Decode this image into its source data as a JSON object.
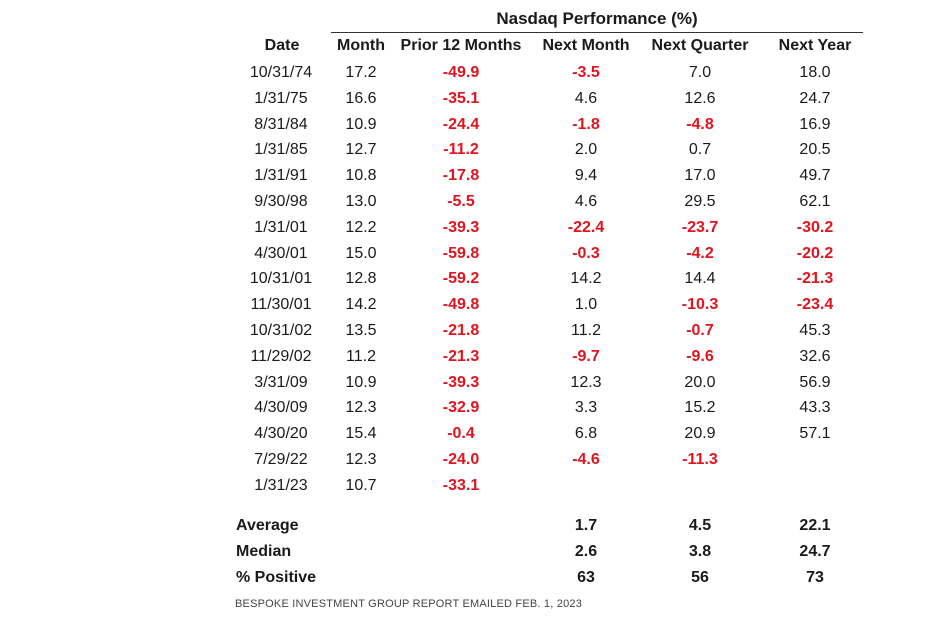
{
  "table": {
    "group_header": "Nasdaq Performance (%)",
    "columns": [
      "Date",
      "Month",
      "Prior 12 Months",
      "Next Month",
      "Next Quarter",
      "Next Year"
    ],
    "rows": [
      [
        "10/31/74",
        "17.2",
        "-49.9",
        "-3.5",
        "7.0",
        "18.0"
      ],
      [
        "1/31/75",
        "16.6",
        "-35.1",
        "4.6",
        "12.6",
        "24.7"
      ],
      [
        "8/31/84",
        "10.9",
        "-24.4",
        "-1.8",
        "-4.8",
        "16.9"
      ],
      [
        "1/31/85",
        "12.7",
        "-11.2",
        "2.0",
        "0.7",
        "20.5"
      ],
      [
        "1/31/91",
        "10.8",
        "-17.8",
        "9.4",
        "17.0",
        "49.7"
      ],
      [
        "9/30/98",
        "13.0",
        "-5.5",
        "4.6",
        "29.5",
        "62.1"
      ],
      [
        "1/31/01",
        "12.2",
        "-39.3",
        "-22.4",
        "-23.7",
        "-30.2"
      ],
      [
        "4/30/01",
        "15.0",
        "-59.8",
        "-0.3",
        "-4.2",
        "-20.2"
      ],
      [
        "10/31/01",
        "12.8",
        "-59.2",
        "14.2",
        "14.4",
        "-21.3"
      ],
      [
        "11/30/01",
        "14.2",
        "-49.8",
        "1.0",
        "-10.3",
        "-23.4"
      ],
      [
        "10/31/02",
        "13.5",
        "-21.8",
        "11.2",
        "-0.7",
        "45.3"
      ],
      [
        "11/29/02",
        "11.2",
        "-21.3",
        "-9.7",
        "-9.6",
        "32.6"
      ],
      [
        "3/31/09",
        "10.9",
        "-39.3",
        "12.3",
        "20.0",
        "56.9"
      ],
      [
        "4/30/09",
        "12.3",
        "-32.9",
        "3.3",
        "15.2",
        "43.3"
      ],
      [
        "4/30/20",
        "15.4",
        "-0.4",
        "6.8",
        "20.9",
        "57.1"
      ],
      [
        "7/29/22",
        "12.3",
        "-24.0",
        "-4.6",
        "-11.3",
        ""
      ],
      [
        "1/31/23",
        "10.7",
        "-33.1",
        "",
        "",
        ""
      ]
    ],
    "summary": [
      {
        "label": "Average",
        "next_month": "1.7",
        "next_quarter": "4.5",
        "next_year": "22.1"
      },
      {
        "label": "Median",
        "next_month": "2.6",
        "next_quarter": "3.8",
        "next_year": "24.7"
      },
      {
        "label": "% Positive",
        "next_month": "63",
        "next_quarter": "56",
        "next_year": "73"
      }
    ],
    "footer": "BESPOKE INVESTMENT GROUP REPORT EMAILED FEB. 1, 2023",
    "colors": {
      "negative": "#e0141e",
      "text": "#1a1a1a"
    }
  },
  "chart_data": {
    "type": "table",
    "title": "Nasdaq Performance (%)",
    "columns": [
      "Date",
      "Month",
      "Prior 12 Months",
      "Next Month",
      "Next Quarter",
      "Next Year"
    ],
    "rows": [
      [
        "10/31/74",
        17.2,
        -49.9,
        -3.5,
        7.0,
        18.0
      ],
      [
        "1/31/75",
        16.6,
        -35.1,
        4.6,
        12.6,
        24.7
      ],
      [
        "8/31/84",
        10.9,
        -24.4,
        -1.8,
        -4.8,
        16.9
      ],
      [
        "1/31/85",
        12.7,
        -11.2,
        2.0,
        0.7,
        20.5
      ],
      [
        "1/31/91",
        10.8,
        -17.8,
        9.4,
        17.0,
        49.7
      ],
      [
        "9/30/98",
        13.0,
        -5.5,
        4.6,
        29.5,
        62.1
      ],
      [
        "1/31/01",
        12.2,
        -39.3,
        -22.4,
        -23.7,
        -30.2
      ],
      [
        "4/30/01",
        15.0,
        -59.8,
        -0.3,
        -4.2,
        -20.2
      ],
      [
        "10/31/01",
        12.8,
        -59.2,
        14.2,
        14.4,
        -21.3
      ],
      [
        "11/30/01",
        14.2,
        -49.8,
        1.0,
        -10.3,
        -23.4
      ],
      [
        "10/31/02",
        13.5,
        -21.8,
        11.2,
        -0.7,
        45.3
      ],
      [
        "11/29/02",
        11.2,
        -21.3,
        -9.7,
        -9.6,
        32.6
      ],
      [
        "3/31/09",
        10.9,
        -39.3,
        12.3,
        20.0,
        56.9
      ],
      [
        "4/30/09",
        12.3,
        -32.9,
        3.3,
        15.2,
        43.3
      ],
      [
        "4/30/20",
        15.4,
        -0.4,
        6.8,
        20.9,
        57.1
      ],
      [
        "7/29/22",
        12.3,
        -24.0,
        -4.6,
        -11.3,
        null
      ],
      [
        "1/31/23",
        10.7,
        -33.1,
        null,
        null,
        null
      ]
    ],
    "summary": {
      "Average": {
        "Next Month": 1.7,
        "Next Quarter": 4.5,
        "Next Year": 22.1
      },
      "Median": {
        "Next Month": 2.6,
        "Next Quarter": 3.8,
        "Next Year": 24.7
      },
      "% Positive": {
        "Next Month": 63,
        "Next Quarter": 56,
        "Next Year": 73
      }
    }
  }
}
